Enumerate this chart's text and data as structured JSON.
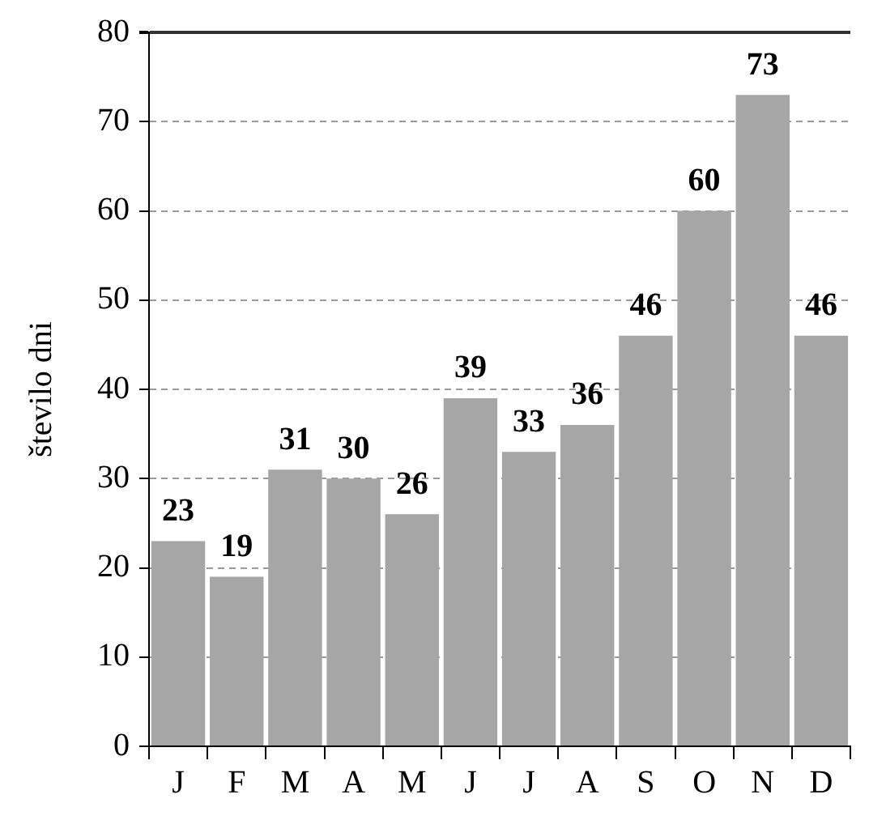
{
  "chart_data": {
    "type": "bar",
    "ylabel": "število dni",
    "categories": [
      "J",
      "F",
      "M",
      "A",
      "M",
      "J",
      "J",
      "A",
      "S",
      "O",
      "N",
      "D"
    ],
    "values": [
      23,
      19,
      31,
      30,
      26,
      39,
      33,
      36,
      46,
      60,
      73,
      46
    ],
    "color": "#a6a6a6",
    "ylim": [
      0,
      80
    ],
    "yticks": [
      0,
      10,
      20,
      30,
      40,
      50,
      60,
      70,
      80
    ],
    "grid": "y",
    "data_labels": true,
    "legend": false
  }
}
